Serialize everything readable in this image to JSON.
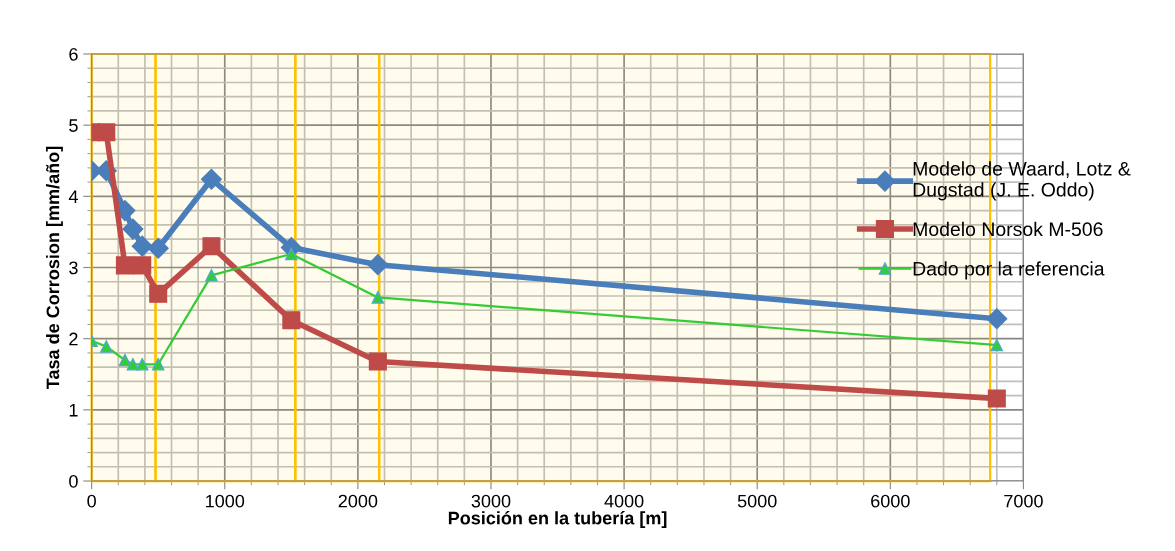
{
  "chart_data": {
    "type": "line",
    "xlabel": "Posición en la tubería [m]",
    "ylabel": "Tasa de Corrosion [mm/año]",
    "x": [
      0,
      110,
      250,
      310,
      380,
      500,
      900,
      1500,
      2150,
      6800
    ],
    "series": [
      {
        "name": "Modelo de Waard, Lotz &\nDugstad (J. E. Oddo)",
        "color": "#4a7ebb",
        "marker": "diamond",
        "values": [
          4.36,
          4.36,
          3.8,
          3.54,
          3.3,
          3.27,
          4.24,
          3.28,
          3.04,
          2.28
        ]
      },
      {
        "name": "Modelo Norsok M-506",
        "color": "#be4b48",
        "marker": "square",
        "x": [
          0,
          110,
          250,
          380,
          500,
          900,
          1500,
          2150,
          6800
        ],
        "values": [
          4.9,
          4.9,
          3.03,
          3.03,
          2.63,
          3.3,
          2.26,
          1.68,
          1.16
        ]
      },
      {
        "name": "Dado por la referencia",
        "color": "#33cc33",
        "marker": "triangle",
        "values": [
          1.97,
          1.89,
          1.7,
          1.64,
          1.64,
          1.64,
          2.89,
          3.19,
          2.58,
          1.91
        ]
      }
    ],
    "xlim": [
      0,
      7000
    ],
    "xticks": [
      0,
      1000,
      2000,
      3000,
      4000,
      5000,
      6000,
      7000
    ],
    "ylim": [
      0,
      6
    ],
    "yticks": [
      0,
      1,
      2,
      3,
      4,
      5,
      6
    ],
    "grid": true,
    "legend": "right",
    "bands": [
      {
        "axis": "x",
        "from": 0,
        "to": 480,
        "color": "#ffc000"
      },
      {
        "axis": "x",
        "from": 480,
        "to": 1530,
        "color": "#ffc000"
      },
      {
        "axis": "x",
        "from": 1530,
        "to": 2160,
        "color": "#ffc000"
      },
      {
        "axis": "x",
        "from": 2160,
        "to": 6750,
        "color": "#ffc000"
      }
    ]
  }
}
